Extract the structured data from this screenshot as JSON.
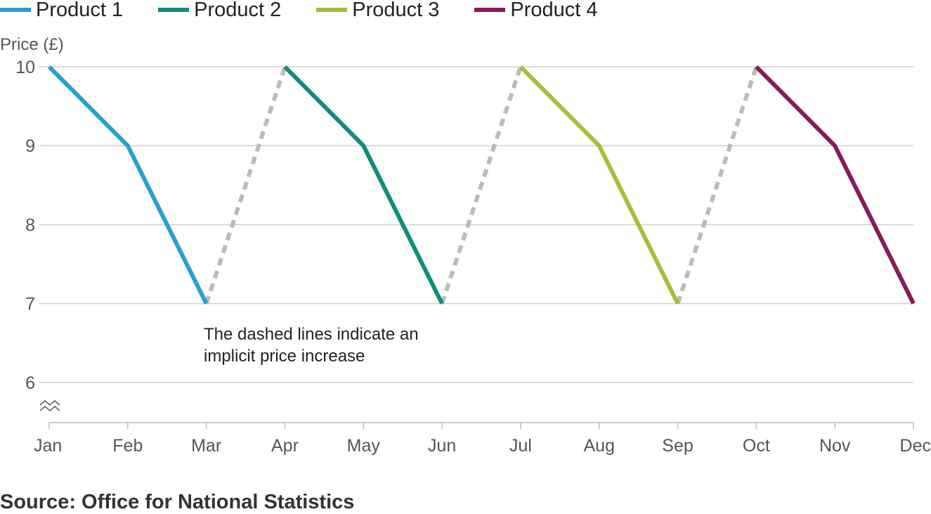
{
  "chart_data": {
    "type": "line",
    "ylabel": "Price (£)",
    "ylim": [
      5.5,
      10
    ],
    "yticks": [
      6,
      7,
      8,
      9,
      10
    ],
    "categories": [
      "Jan",
      "Feb",
      "Mar",
      "Apr",
      "May",
      "Jun",
      "Jul",
      "Aug",
      "Sep",
      "Oct",
      "Nov",
      "Dec"
    ],
    "series": [
      {
        "name": "Product 1",
        "color": "#27a0cc",
        "x": [
          "Jan",
          "Feb",
          "Mar"
        ],
        "values": [
          10,
          9,
          7
        ]
      },
      {
        "name": "Product 2",
        "color": "#118c7b",
        "x": [
          "Apr",
          "May",
          "Jun"
        ],
        "values": [
          10,
          9,
          7
        ]
      },
      {
        "name": "Product 3",
        "color": "#a8bd3a",
        "x": [
          "Jul",
          "Aug",
          "Sep"
        ],
        "values": [
          10,
          9,
          7
        ]
      },
      {
        "name": "Product 4",
        "color": "#871a5b",
        "x": [
          "Oct",
          "Nov",
          "Dec"
        ],
        "values": [
          10,
          9,
          7
        ]
      }
    ],
    "dashed_links": {
      "color": "#bbbbbb",
      "segments": [
        {
          "from": "Mar",
          "to": "Apr",
          "values": [
            7,
            10
          ]
        },
        {
          "from": "Jun",
          "to": "Jul",
          "values": [
            7,
            10
          ]
        },
        {
          "from": "Sep",
          "to": "Oct",
          "values": [
            7,
            10
          ]
        }
      ]
    },
    "annotation": "The dashed lines indicate an implicit price increase",
    "axis_break": true,
    "grid": true,
    "legend_position": "top"
  },
  "source": "Source: Office for National Statistics"
}
